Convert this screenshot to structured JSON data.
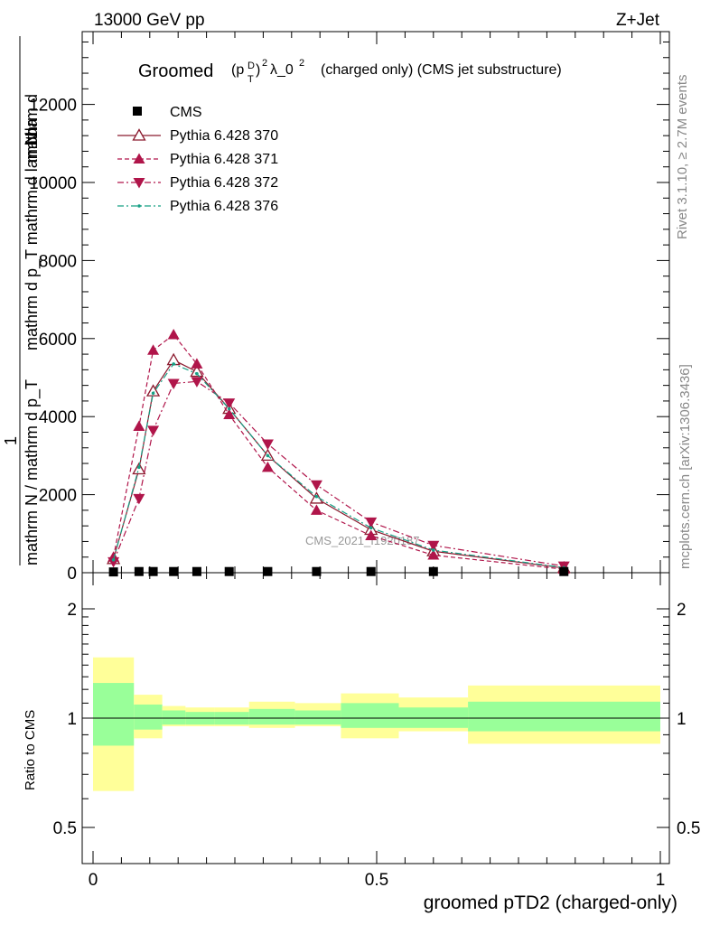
{
  "header": {
    "left": "13000 GeV pp",
    "right": "Z+Jet",
    "title_main": "Groomed",
    "title_sup": "D",
    "title_sub": "T",
    "title_rest": "(charged only) (CMS jet substructure)"
  },
  "side_labels": {
    "rivet": "Rivet 3.1.10, ≥ 2.7M events",
    "mcplots": "mcplots.cern.ch [arXiv:1306.3436]"
  },
  "watermark": "CMS_2021_I1920187",
  "y_title_upper": {
    "line_top": "mathrm d",
    "line_mid": "N",
    "line_bottom": "mathrm d p_T mathrm d lambda",
    "frac_numer": "1",
    "frac_denom": "mathrm N / mathrm d p_T"
  },
  "ratio_ylabel": "Ratio to CMS",
  "x_title": "groomed pTD2 (charged-only)",
  "colors": {
    "band_inner": "#99ff99",
    "band_outer": "#ffff99",
    "p370": "#8b1a2e",
    "p371": "#b0154a",
    "p372": "#b0154a",
    "p376": "#16a085"
  },
  "chart_data": {
    "type": "line",
    "xlim": [
      -0.02,
      1.01
    ],
    "x_ticks": [
      0,
      0.5,
      1
    ],
    "x_tick_labels": [
      "0",
      "0.5",
      "1"
    ],
    "main_ylim": [
      0,
      14000
    ],
    "main_y_ticks": [
      0,
      2000,
      4000,
      6000,
      8000,
      10000,
      12000
    ],
    "main_y_tick_labels": [
      "0",
      "2000",
      "4000",
      "6000",
      "8000",
      "10000",
      "12000"
    ],
    "ratio_ylim": [
      0.35,
      2.3
    ],
    "ratio_y_ticks": [
      0.5,
      1,
      2
    ],
    "ratio_y_tick_labels": [
      "0.5",
      "1",
      "2"
    ],
    "log_ratio": true,
    "legend_position": "top-left",
    "legend": [
      "CMS",
      "Pythia 6.428 370",
      "Pythia 6.428 371",
      "Pythia 6.428 372",
      "Pythia 6.428 376"
    ],
    "x_bins": [
      0.0,
      0.072,
      0.122,
      0.163,
      0.214,
      0.275,
      0.356,
      0.437,
      0.539,
      0.661,
      1.0
    ],
    "x": [
      0.036,
      0.081,
      0.106,
      0.142,
      0.183,
      0.24,
      0.308,
      0.394,
      0.49,
      0.6,
      0.83
    ],
    "cms": [
      20,
      30,
      30,
      30,
      30,
      30,
      30,
      30,
      30,
      30,
      30
    ],
    "series": [
      {
        "name": "Pythia 6.428 370",
        "marker": "triangle-open",
        "dash": "solid",
        "values": [
          350,
          2650,
          4650,
          5450,
          5150,
          4200,
          3000,
          1900,
          1100,
          550,
          120
        ]
      },
      {
        "name": "Pythia 6.428 371",
        "marker": "triangle-up",
        "dash": "dashed",
        "values": [
          400,
          3750,
          5700,
          6100,
          5350,
          4050,
          2700,
          1600,
          950,
          450,
          90
        ]
      },
      {
        "name": "Pythia 6.428 372",
        "marker": "triangle-down",
        "dash": "dashdot",
        "values": [
          280,
          1900,
          3650,
          4850,
          4900,
          4350,
          3300,
          2250,
          1300,
          700,
          170
        ]
      },
      {
        "name": "Pythia 6.428 376",
        "marker": "dot",
        "dash": "dashdot",
        "values": [
          330,
          2700,
          4600,
          5350,
          5100,
          4200,
          3000,
          1950,
          1150,
          580,
          130
        ]
      }
    ],
    "ratio_band_inner": [
      [
        0.84,
        1.25
      ],
      [
        0.93,
        1.09
      ],
      [
        0.96,
        1.05
      ],
      [
        0.96,
        1.04
      ],
      [
        0.96,
        1.04
      ],
      [
        0.96,
        1.06
      ],
      [
        0.96,
        1.05
      ],
      [
        0.94,
        1.1
      ],
      [
        0.94,
        1.07
      ],
      [
        0.92,
        1.11
      ],
      [
        0.92,
        1.11
      ]
    ],
    "ratio_band_outer": [
      [
        0.63,
        1.47
      ],
      [
        0.88,
        1.16
      ],
      [
        0.95,
        1.08
      ],
      [
        0.95,
        1.07
      ],
      [
        0.95,
        1.07
      ],
      [
        0.94,
        1.11
      ],
      [
        0.95,
        1.1
      ],
      [
        0.88,
        1.17
      ],
      [
        0.92,
        1.14
      ],
      [
        0.85,
        1.23
      ],
      [
        0.85,
        1.23
      ]
    ]
  }
}
